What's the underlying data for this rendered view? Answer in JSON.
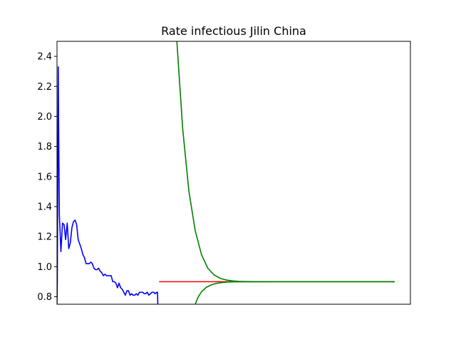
{
  "chart_data": {
    "type": "line",
    "title": "Rate infectious Jilin China",
    "xlabel": "",
    "ylabel": "",
    "xlim": [
      0,
      225
    ],
    "ylim": [
      0.75,
      2.5
    ],
    "x_ticks_shown": false,
    "y_ticks": [
      0.8,
      1.0,
      1.2,
      1.4,
      1.6,
      1.8,
      2.0,
      2.2,
      2.4
    ],
    "y_tick_labels": [
      "0.8",
      "1.0",
      "1.2",
      "1.4",
      "1.6",
      "1.8",
      "2.0",
      "2.2",
      "2.4"
    ],
    "grid": false,
    "legend": "none",
    "series": [
      {
        "color": "#0000ff",
        "x": [
          0.0,
          0.2,
          0.8,
          1.0,
          1.5,
          2.5,
          3.5,
          4.5,
          5.5,
          6.5,
          7.5,
          8.5,
          9.5,
          10.5,
          11.5,
          12.5,
          13.5,
          14.5,
          15.5,
          16.5,
          17.5,
          18.5,
          19.5,
          20.5,
          21.5,
          22.5,
          23.5,
          24.5,
          25.5,
          26.5,
          27.5,
          28.5,
          29.5,
          30.5,
          31.5,
          32.5,
          33.5,
          34.5,
          35.5,
          36.5,
          37.5,
          38.5,
          39.5,
          40.5,
          41.5,
          42.5,
          43.5,
          44.5,
          45.5,
          46.5,
          47.5,
          48.5,
          49.5,
          50.5,
          51.5,
          52.5,
          53.5,
          54.5,
          55.5,
          56.5,
          57.5,
          58.5,
          59.5,
          60.5,
          61.5,
          62.5,
          63.5,
          64.0,
          64.2
        ],
        "y": [
          0.75,
          0.9,
          2.33,
          2.0,
          1.35,
          1.1,
          1.29,
          1.28,
          1.18,
          1.29,
          1.12,
          1.16,
          1.26,
          1.3,
          1.31,
          1.28,
          1.18,
          1.15,
          1.12,
          1.08,
          1.06,
          1.02,
          1.02,
          1.02,
          1.03,
          1.02,
          0.99,
          0.98,
          0.98,
          0.99,
          0.97,
          0.96,
          0.94,
          0.95,
          0.94,
          0.94,
          0.94,
          0.94,
          0.9,
          0.9,
          0.89,
          0.86,
          0.89,
          0.86,
          0.85,
          0.83,
          0.81,
          0.84,
          0.84,
          0.81,
          0.82,
          0.81,
          0.81,
          0.82,
          0.81,
          0.83,
          0.83,
          0.83,
          0.82,
          0.82,
          0.83,
          0.81,
          0.82,
          0.83,
          0.83,
          0.82,
          0.83,
          0.83,
          0.75
        ]
      },
      {
        "color": "#ff0000",
        "x": [
          65,
          215
        ],
        "y": [
          0.9,
          0.9
        ]
      },
      {
        "color": "#008000",
        "x": [
          76,
          80,
          84,
          88,
          92,
          96,
          100,
          104,
          108,
          112,
          116,
          120,
          125,
          130,
          140,
          160,
          180,
          200,
          215
        ],
        "y": [
          2.55,
          1.92,
          1.5,
          1.24,
          1.08,
          0.99,
          0.945,
          0.922,
          0.911,
          0.905,
          0.902,
          0.901,
          0.9005,
          0.9002,
          0.9001,
          0.9,
          0.9,
          0.9,
          0.9
        ]
      },
      {
        "color": "#008000",
        "x": [
          88,
          90,
          92,
          95,
          98,
          101,
          104,
          108,
          112,
          118,
          125,
          140,
          160,
          180,
          200,
          215
        ],
        "y": [
          0.75,
          0.8,
          0.833,
          0.862,
          0.878,
          0.888,
          0.893,
          0.897,
          0.899,
          0.8996,
          0.8999,
          0.9,
          0.9,
          0.9,
          0.9,
          0.9
        ]
      }
    ]
  }
}
